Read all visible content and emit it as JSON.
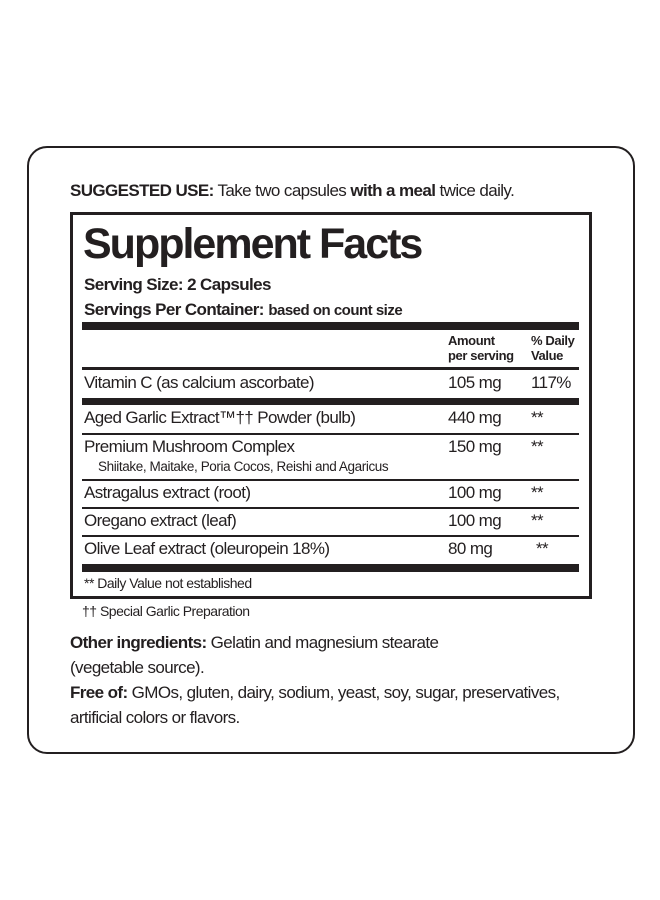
{
  "suggested_use": {
    "label": "SUGGESTED USE:",
    "text1": " Take two capsules ",
    "bold": "with a meal",
    "text2": " twice daily."
  },
  "facts": {
    "title": "Supplement Facts",
    "serving_size": "Serving Size: 2 Capsules",
    "servings_per_container_label": "Servings Per Container:",
    "servings_per_container_value": "based on count size",
    "header": {
      "amount1": "Amount",
      "amount2": "per serving",
      "dv1": "% Daily",
      "dv2": "Value"
    },
    "rows": [
      {
        "name": "Vitamin C (as calcium ascorbate)",
        "amount": "105 mg",
        "dv": "117%"
      },
      {
        "name": "Aged Garlic Extract™†† Powder (bulb)",
        "amount": "440 mg",
        "dv": "**"
      },
      {
        "name": "Premium Mushroom Complex",
        "sub": "Shiitake, Maitake, Poria Cocos, Reishi and Agaricus",
        "amount": "150 mg",
        "dv": "**"
      },
      {
        "name": "Astragalus extract (root)",
        "amount": "100 mg",
        "dv": "**"
      },
      {
        "name": "Oregano extract (leaf)",
        "amount": "100 mg",
        "dv": "**"
      },
      {
        "name": "Olive Leaf extract (oleuropein 18%)",
        "amount": "80 mg",
        "dv": "**"
      }
    ],
    "footnote": "** Daily Value not established"
  },
  "garlic_note": "†† Special Garlic Preparation",
  "other_ingredients": {
    "label": "Other ingredients:",
    "line1": " Gelatin and magnesium stearate",
    "line2": "(vegetable source)."
  },
  "free_of": {
    "label": "Free of:",
    "line1": " GMOs, gluten, dairy, sodium, yeast, soy, sugar, preservatives,",
    "line2": "artificial colors or flavors."
  }
}
